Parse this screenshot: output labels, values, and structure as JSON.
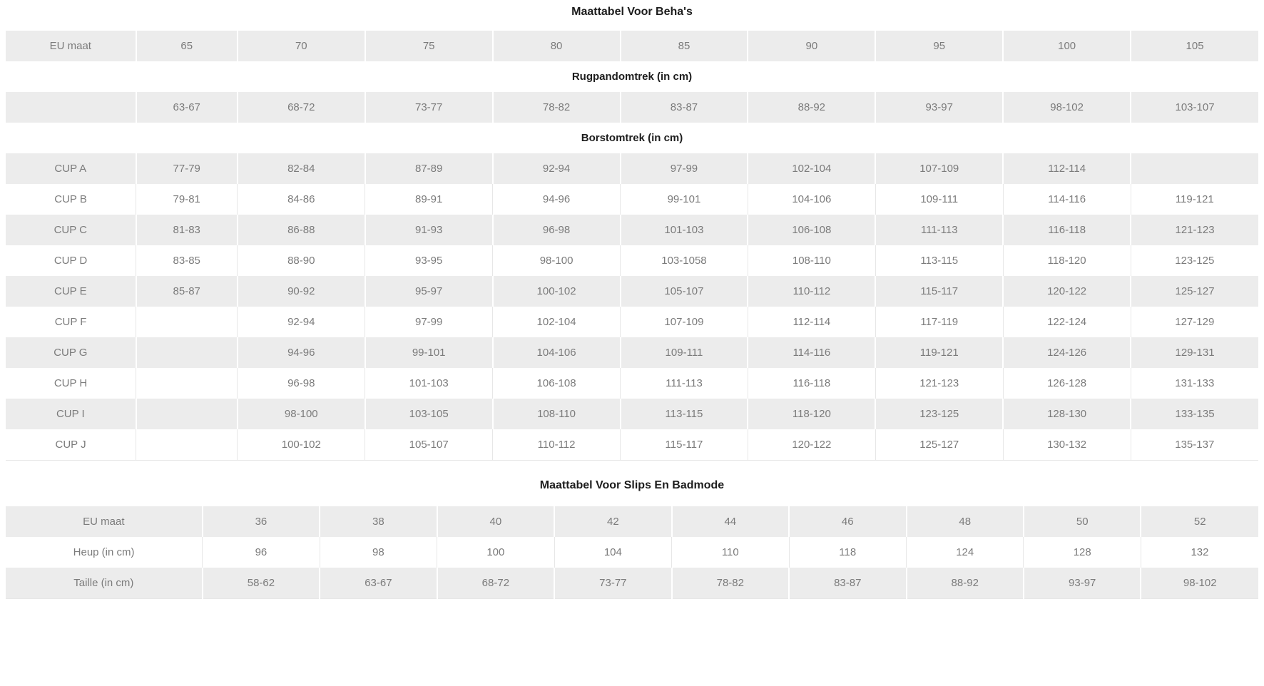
{
  "bra_table": {
    "title": "Maattabel Voor Beha's",
    "rows": [
      {
        "type": "data",
        "shade": "gray",
        "label": "EU maat",
        "values": [
          "65",
          "70",
          "75",
          "80",
          "85",
          "90",
          "95",
          "100",
          "105"
        ]
      },
      {
        "type": "section",
        "shade": "white",
        "text": "Rugpandomtrek (in cm)"
      },
      {
        "type": "data",
        "shade": "gray",
        "label": "",
        "values": [
          "63-67",
          "68-72",
          "73-77",
          "78-82",
          "83-87",
          "88-92",
          "93-97",
          "98-102",
          "103-107"
        ]
      },
      {
        "type": "section",
        "shade": "white",
        "text": "Borstomtrek (in cm)"
      },
      {
        "type": "data",
        "shade": "gray",
        "label": "CUP A",
        "values": [
          "77-79",
          "82-84",
          "87-89",
          "92-94",
          "97-99",
          "102-104",
          "107-109",
          "112-114",
          ""
        ]
      },
      {
        "type": "data",
        "shade": "white",
        "label": "CUP B",
        "values": [
          "79-81",
          "84-86",
          "89-91",
          "94-96",
          "99-101",
          "104-106",
          "109-111",
          "114-116",
          "119-121"
        ]
      },
      {
        "type": "data",
        "shade": "gray",
        "label": "CUP C",
        "values": [
          "81-83",
          "86-88",
          "91-93",
          "96-98",
          "101-103",
          "106-108",
          "111-113",
          "116-118",
          "121-123"
        ]
      },
      {
        "type": "data",
        "shade": "white",
        "label": "CUP D",
        "values": [
          "83-85",
          "88-90",
          "93-95",
          "98-100",
          "103-1058",
          "108-110",
          "113-115",
          "118-120",
          "123-125"
        ]
      },
      {
        "type": "data",
        "shade": "gray",
        "label": "CUP E",
        "values": [
          "85-87",
          "90-92",
          "95-97",
          "100-102",
          "105-107",
          "110-112",
          "115-117",
          "120-122",
          "125-127"
        ]
      },
      {
        "type": "data",
        "shade": "white",
        "label": "CUP F",
        "values": [
          "",
          "92-94",
          "97-99",
          "102-104",
          "107-109",
          "112-114",
          "117-119",
          "122-124",
          "127-129"
        ]
      },
      {
        "type": "data",
        "shade": "gray",
        "label": "CUP G",
        "values": [
          "",
          "94-96",
          "99-101",
          "104-106",
          "109-111",
          "114-116",
          "119-121",
          "124-126",
          "129-131"
        ]
      },
      {
        "type": "data",
        "shade": "white",
        "label": "CUP H",
        "values": [
          "",
          "96-98",
          "101-103",
          "106-108",
          "111-113",
          "116-118",
          "121-123",
          "126-128",
          "131-133"
        ]
      },
      {
        "type": "data",
        "shade": "gray",
        "label": "CUP I",
        "values": [
          "",
          "98-100",
          "103-105",
          "108-110",
          "113-115",
          "118-120",
          "123-125",
          "128-130",
          "133-135"
        ]
      },
      {
        "type": "data",
        "shade": "white",
        "label": "CUP J",
        "values": [
          "",
          "100-102",
          "105-107",
          "110-112",
          "115-117",
          "120-122",
          "125-127",
          "130-132",
          "135-137"
        ]
      }
    ]
  },
  "brief_table": {
    "title": "Maattabel Voor Slips En Badmode",
    "rows": [
      {
        "type": "data",
        "shade": "gray",
        "label": "EU maat",
        "values": [
          "36",
          "38",
          "40",
          "42",
          "44",
          "46",
          "48",
          "50",
          "52"
        ]
      },
      {
        "type": "data",
        "shade": "white",
        "label": "Heup (in cm)",
        "values": [
          "96",
          "98",
          "100",
          "104",
          "110",
          "118",
          "124",
          "128",
          "132"
        ]
      },
      {
        "type": "data",
        "shade": "gray",
        "label": "Taille (in cm)",
        "values": [
          "58-62",
          "63-67",
          "68-72",
          "73-77",
          "78-82",
          "83-87",
          "88-92",
          "93-97",
          "98-102"
        ]
      }
    ]
  },
  "colors": {
    "row_gray": "#ececec",
    "cell_text": "#7b7b7b",
    "heading_text": "#1d1d1d",
    "border_light": "#e7e7e7"
  }
}
